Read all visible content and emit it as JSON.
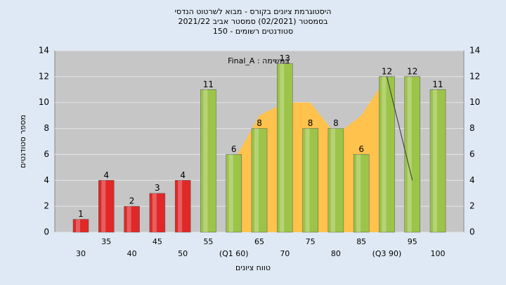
{
  "chart_data": {
    "type": "bar",
    "title": "היסטוגרמת ציונים בקורס - מבוא לשרטוט הנדסי",
    "subtitle": [
      "בסמסטר  (02/2021)  סמסטר אביב 2021/22",
      "סטודנטים רשומים - 150"
    ],
    "annotation": "במשימה : Final_A",
    "x_label": "טווח ציונים",
    "y_label": "מספר סטודנטים",
    "categories": [
      "30",
      "35",
      "40",
      "45",
      "50",
      "55",
      "(Q1 60)",
      "65",
      "70",
      "75",
      "80",
      "85",
      "(Q3 90)",
      "95",
      "100"
    ],
    "values": [
      1,
      4,
      2,
      3,
      4,
      11,
      6,
      8,
      13,
      8,
      8,
      6,
      12,
      12,
      11
    ],
    "colors": [
      "#e02828",
      "#e02828",
      "#e02828",
      "#e02828",
      "#e02828",
      "#9cc449",
      "#9cc449",
      "#9cc449",
      "#9cc449",
      "#9cc449",
      "#9cc449",
      "#9cc449",
      "#9cc449",
      "#9cc449",
      "#9cc449"
    ],
    "area": {
      "color": "#ffc24d",
      "values": [
        null,
        null,
        null,
        null,
        null,
        null,
        5.5,
        9,
        10,
        10,
        7.5,
        9,
        12,
        null,
        null
      ]
    },
    "line": {
      "color": "#333333",
      "values": [
        null,
        null,
        null,
        null,
        null,
        null,
        null,
        null,
        null,
        null,
        null,
        null,
        12,
        4,
        null
      ]
    },
    "ylim": [
      0,
      14
    ],
    "yticks": [
      0,
      2,
      4,
      6,
      8,
      10,
      12,
      14
    ],
    "grid": true
  }
}
